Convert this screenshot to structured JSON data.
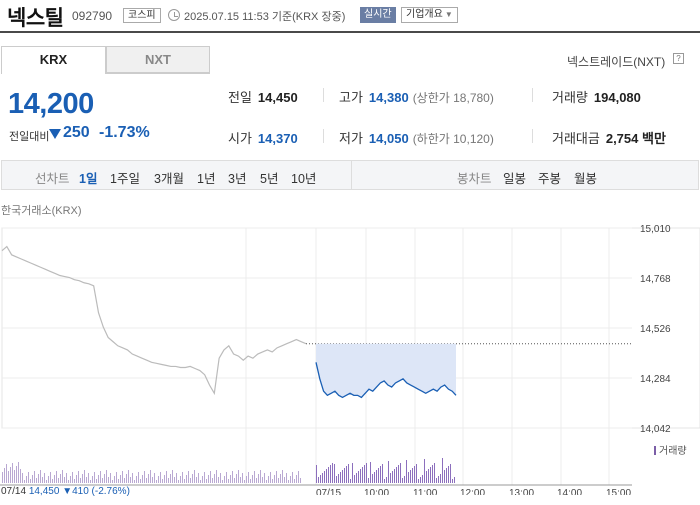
{
  "header": {
    "name": "넥스틸",
    "code": "092790",
    "market": "코스피",
    "basetime": "2025.07.15 11:53 기준(KRX 장중)",
    "realtime": "실시간",
    "company_info": "기업개요"
  },
  "tabs": {
    "krx": "KRX",
    "nxt": "NXT",
    "nxt_link": "넥스트레이드(NXT)",
    "help": "?"
  },
  "price": {
    "current": "14,200",
    "change_label": "전일대비",
    "change": "250",
    "change_pct": "-1.73%"
  },
  "stats": {
    "prev_label": "전일",
    "prev": "14,450",
    "high_label": "고가",
    "high": "14,380",
    "upper_limit": "(상한가 18,780)",
    "volume_label": "거래량",
    "volume": "194,080",
    "open_label": "시가",
    "open": "14,370",
    "low_label": "저가",
    "low": "14,050",
    "lower_limit": "(하한가 10,120)",
    "amount_label": "거래대금",
    "amount": "2,754 백만"
  },
  "toolbar": {
    "line_label": "선차트",
    "periods": [
      "1일",
      "1주일",
      "3개월",
      "1년",
      "3년",
      "5년",
      "10년"
    ],
    "candle_label": "봉차트",
    "candles": [
      "일봉",
      "주봉",
      "월봉"
    ]
  },
  "chart": {
    "exchange_label": "한국거래소(KRX)",
    "volume_legend": "거래량",
    "prev_day": "07/14",
    "prev_close": "14,450",
    "prev_change": "▼410 (-2.76%)"
  },
  "chart_data": {
    "type": "line",
    "title": "",
    "y_ticks": [
      "15,010",
      "14,768",
      "14,526",
      "14,284",
      "14,042"
    ],
    "ylim": [
      14042,
      15010
    ],
    "x_ticks": [
      "07/14",
      "07/15",
      "10:00",
      "11:00",
      "12:00",
      "13:00",
      "14:00",
      "15:00"
    ],
    "reference_line": 14450,
    "series": [
      {
        "day": "07/14",
        "color": "#bbbbbb",
        "values": [
          14900,
          14920,
          14880,
          14870,
          14860,
          14850,
          14840,
          14830,
          14820,
          14810,
          14800,
          14790,
          14780,
          14775,
          14770,
          14760,
          14755,
          14745,
          14740,
          14730,
          14600,
          14530,
          14480,
          14460,
          14440,
          14430,
          14420,
          14400,
          14390,
          14380,
          14370,
          14360,
          14355,
          14350,
          14345,
          14340,
          14340,
          14335,
          14335,
          14340,
          14330,
          14320,
          14300,
          14250,
          14210,
          14380,
          14420,
          14440,
          14400,
          14390,
          14370,
          14390,
          14380,
          14400,
          14410,
          14420,
          14410,
          14430,
          14440,
          14450,
          14460,
          14470,
          14460,
          14450
        ]
      },
      {
        "day": "07/15",
        "color": "#1a5fb4",
        "values": [
          14360,
          14280,
          14220,
          14200,
          14210,
          14220,
          14200,
          14190,
          14200,
          14210,
          14200,
          14200,
          14190,
          14210,
          14230,
          14220,
          14240,
          14260,
          14270,
          14250,
          14240,
          14260,
          14270,
          14280,
          14260,
          14250,
          14240,
          14230,
          14220,
          14210,
          14220,
          14230,
          14220,
          14240,
          14250,
          14230,
          14220,
          14200
        ]
      }
    ]
  }
}
